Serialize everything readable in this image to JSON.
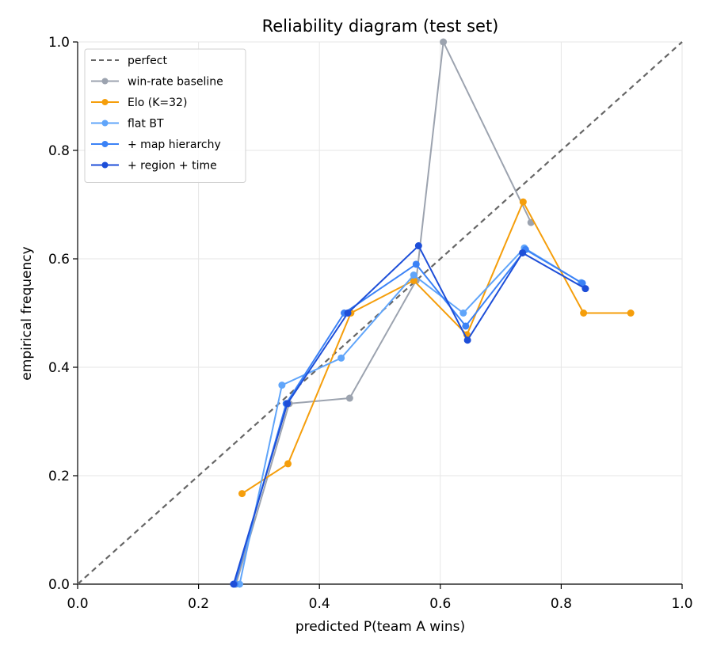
{
  "chart_data": {
    "type": "line",
    "title": "Reliability diagram (test set)",
    "xlabel": "predicted P(team A wins)",
    "ylabel": "empirical frequency",
    "xlim": [
      0.0,
      1.0
    ],
    "ylim": [
      0.0,
      1.0
    ],
    "xticks": [
      "0.0",
      "0.2",
      "0.4",
      "0.6",
      "0.8",
      "1.0"
    ],
    "yticks": [
      "0.0",
      "0.2",
      "0.4",
      "0.6",
      "0.8",
      "1.0"
    ],
    "grid": true,
    "legend_position": "top-left",
    "series": [
      {
        "name": "perfect",
        "style": "dashed",
        "markers": false,
        "color": "#666666",
        "x": [
          0.0,
          1.0
        ],
        "y": [
          0.0,
          1.0
        ]
      },
      {
        "name": "win-rate baseline",
        "style": "solid",
        "markers": true,
        "color": "#9ca3af",
        "x": [
          0.262,
          0.35,
          0.45,
          0.56,
          0.605,
          0.75
        ],
        "y": [
          0.0,
          0.333,
          0.343,
          0.56,
          1.0,
          0.667
        ]
      },
      {
        "name": "Elo (K=32)",
        "style": "solid",
        "markers": true,
        "color": "#f59e0b",
        "x": [
          0.272,
          0.348,
          0.452,
          0.556,
          0.644,
          0.737,
          0.837,
          0.915
        ],
        "y": [
          0.167,
          0.222,
          0.5,
          0.56,
          0.46,
          0.705,
          0.5,
          0.5
        ]
      },
      {
        "name": "flat BT",
        "style": "solid",
        "markers": true,
        "color": "#60a5fa",
        "x": [
          0.268,
          0.338,
          0.436,
          0.556,
          0.638,
          0.739,
          0.833
        ],
        "y": [
          0.0,
          0.367,
          0.417,
          0.57,
          0.5,
          0.62,
          0.556
        ]
      },
      {
        "name": "+ map hierarchy",
        "style": "solid",
        "markers": true,
        "color": "#3b82f6",
        "x": [
          0.26,
          0.345,
          0.441,
          0.56,
          0.642,
          0.741,
          0.835
        ],
        "y": [
          0.0,
          0.333,
          0.5,
          0.59,
          0.476,
          0.617,
          0.555
        ]
      },
      {
        "name": "+ region + time",
        "style": "solid",
        "markers": true,
        "color": "#1d4ed8",
        "x": [
          0.258,
          0.347,
          0.447,
          0.564,
          0.645,
          0.736,
          0.84
        ],
        "y": [
          0.0,
          0.333,
          0.5,
          0.624,
          0.45,
          0.611,
          0.545
        ]
      }
    ]
  }
}
